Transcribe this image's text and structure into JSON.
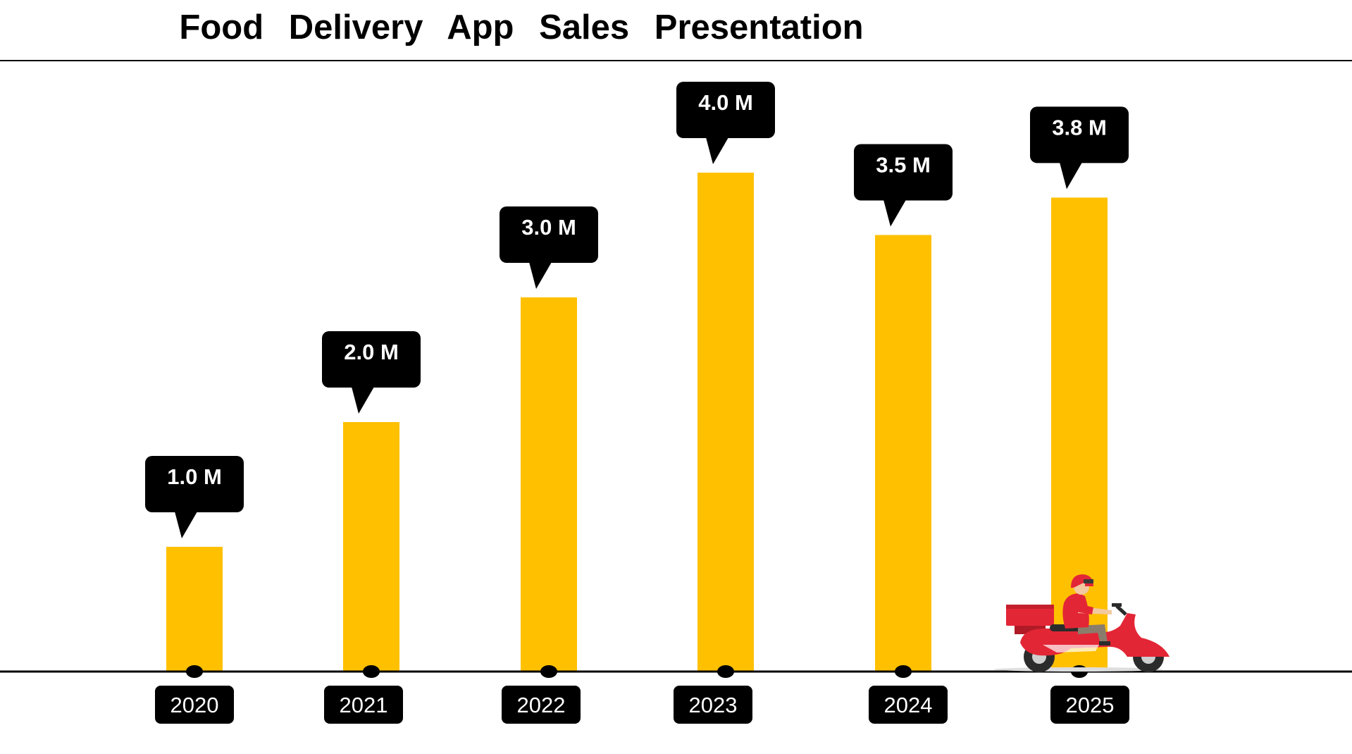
{
  "title": "Food Delivery App Sales Presentation",
  "colors": {
    "bar": "#FFC000",
    "callout": "#000000",
    "axis": "#000000",
    "scooter_body": "#E32636",
    "rider_shirt": "#E32636",
    "rider_pants": "#8B7D6B"
  },
  "illustration": "delivery-scooter-rider",
  "chart_data": {
    "type": "bar",
    "categories": [
      "2020",
      "2021",
      "2022",
      "2023",
      "2024",
      "2025"
    ],
    "values": [
      1.0,
      2.0,
      3.0,
      4.0,
      3.5,
      3.8
    ],
    "data_labels": [
      "1.0 M",
      "2.0 M",
      "3.0 M",
      "4.0 M",
      "3.5 M",
      "3.8 M"
    ],
    "title": "Food Delivery App Sales Presentation",
    "xlabel": "",
    "ylabel": "",
    "ylim": [
      0,
      4.0
    ],
    "grid": false,
    "legend": "none"
  }
}
